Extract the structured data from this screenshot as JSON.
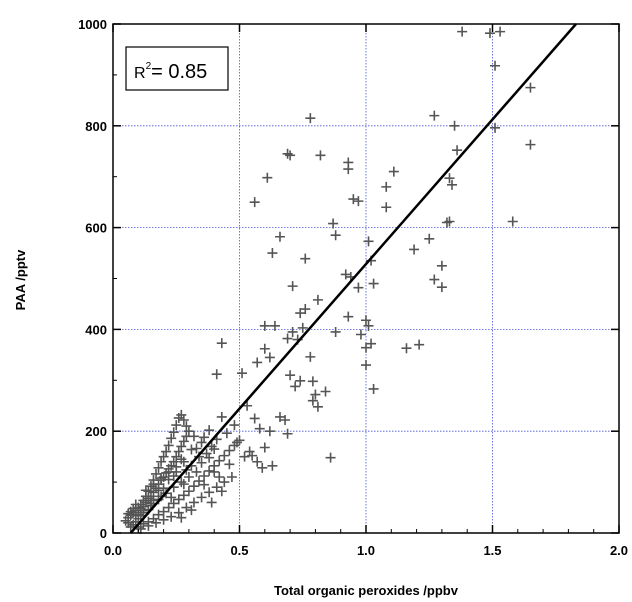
{
  "chart_data": {
    "type": "scatter",
    "xlabel": "Total organic peroxides /ppbv",
    "ylabel": "PAA /pptv",
    "xlim": [
      0,
      2.0
    ],
    "ylim": [
      0,
      1000
    ],
    "x_ticks": [
      "0.0",
      "0.5",
      "1.0",
      "1.5",
      "2.0"
    ],
    "y_ticks": [
      "0",
      "200",
      "400",
      "600",
      "800",
      "1000"
    ],
    "grid": true,
    "annotation": {
      "prefix": "R",
      "superscript": "2",
      "text": "= 0.85"
    },
    "colors": {
      "points": "#555555",
      "fit": "#000000",
      "grid": "#4a55d9"
    },
    "fit_line": {
      "x": [
        0.07,
        1.83
      ],
      "y": [
        0,
        1000
      ]
    },
    "points": [
      [
        1.38,
        985
      ],
      [
        1.49,
        982
      ],
      [
        1.53,
        985
      ],
      [
        1.51,
        918
      ],
      [
        1.65,
        875
      ],
      [
        1.51,
        796
      ],
      [
        1.65,
        763
      ],
      [
        1.36,
        752
      ],
      [
        1.35,
        800
      ],
      [
        1.27,
        820
      ],
      [
        1.11,
        710
      ],
      [
        1.33,
        697
      ],
      [
        1.34,
        684
      ],
      [
        1.08,
        680
      ],
      [
        1.33,
        612
      ],
      [
        1.32,
        610
      ],
      [
        1.08,
        640
      ],
      [
        1.58,
        612
      ],
      [
        0.78,
        815
      ],
      [
        0.69,
        745
      ],
      [
        0.7,
        742
      ],
      [
        0.82,
        742
      ],
      [
        0.93,
        728
      ],
      [
        0.93,
        715
      ],
      [
        0.61,
        698
      ],
      [
        0.56,
        650
      ],
      [
        0.95,
        656
      ],
      [
        0.97,
        652
      ],
      [
        1.01,
        573
      ],
      [
        1.19,
        557
      ],
      [
        1.25,
        578
      ],
      [
        1.27,
        498
      ],
      [
        1.3,
        483
      ],
      [
        1.3,
        525
      ],
      [
        0.87,
        608
      ],
      [
        0.88,
        585
      ],
      [
        0.92,
        508
      ],
      [
        0.94,
        503
      ],
      [
        0.97,
        482
      ],
      [
        0.66,
        582
      ],
      [
        0.63,
        550
      ],
      [
        0.76,
        539
      ],
      [
        0.71,
        485
      ],
      [
        0.76,
        440
      ],
      [
        0.74,
        432
      ],
      [
        0.75,
        403
      ],
      [
        0.71,
        395
      ],
      [
        0.64,
        407
      ],
      [
        0.6,
        407
      ],
      [
        0.6,
        362
      ],
      [
        0.62,
        345
      ],
      [
        0.57,
        335
      ],
      [
        0.51,
        314
      ],
      [
        0.69,
        382
      ],
      [
        0.73,
        380
      ],
      [
        0.78,
        346
      ],
      [
        1.0,
        418
      ],
      [
        1.01,
        407
      ],
      [
        1.02,
        372
      ],
      [
        1.0,
        364
      ],
      [
        1.0,
        330
      ],
      [
        1.03,
        283
      ],
      [
        0.98,
        390
      ],
      [
        1.03,
        490
      ],
      [
        1.02,
        535
      ],
      [
        0.93,
        425
      ],
      [
        0.88,
        395
      ],
      [
        0.81,
        458
      ],
      [
        1.16,
        363
      ],
      [
        1.21,
        370
      ],
      [
        0.43,
        373
      ],
      [
        0.41,
        312
      ],
      [
        0.7,
        310
      ],
      [
        0.74,
        299
      ],
      [
        0.72,
        288
      ],
      [
        0.79,
        298
      ],
      [
        0.8,
        272
      ],
      [
        0.84,
        278
      ],
      [
        0.79,
        260
      ],
      [
        0.81,
        248
      ],
      [
        0.86,
        148
      ],
      [
        0.53,
        250
      ],
      [
        0.56,
        225
      ],
      [
        0.58,
        205
      ],
      [
        0.66,
        228
      ],
      [
        0.68,
        222
      ],
      [
        0.69,
        195
      ],
      [
        0.62,
        200
      ],
      [
        0.6,
        168
      ],
      [
        0.55,
        152
      ],
      [
        0.57,
        140
      ],
      [
        0.59,
        128
      ],
      [
        0.63,
        132
      ],
      [
        0.54,
        160
      ],
      [
        0.52,
        150
      ],
      [
        0.49,
        178
      ],
      [
        0.46,
        135
      ],
      [
        0.43,
        82
      ],
      [
        0.38,
        148
      ],
      [
        0.4,
        120
      ],
      [
        0.48,
        212
      ],
      [
        0.43,
        228
      ],
      [
        0.38,
        202
      ],
      [
        0.36,
        188
      ],
      [
        0.33,
        166
      ],
      [
        0.31,
        132
      ],
      [
        0.27,
        145
      ],
      [
        0.28,
        96
      ],
      [
        0.25,
        120
      ],
      [
        0.22,
        105
      ],
      [
        0.2,
        88
      ],
      [
        0.19,
        72
      ],
      [
        0.18,
        84
      ],
      [
        0.16,
        64
      ],
      [
        0.15,
        58
      ],
      [
        0.14,
        46
      ],
      [
        0.12,
        40
      ],
      [
        0.11,
        34
      ],
      [
        0.1,
        28
      ],
      [
        0.09,
        22
      ],
      [
        0.08,
        16
      ],
      [
        0.07,
        12
      ],
      [
        0.06,
        20
      ],
      [
        0.05,
        24
      ],
      [
        0.06,
        30
      ],
      [
        0.07,
        35
      ],
      [
        0.08,
        40
      ],
      [
        0.09,
        44
      ],
      [
        0.1,
        36
      ],
      [
        0.11,
        48
      ],
      [
        0.12,
        52
      ],
      [
        0.13,
        60
      ],
      [
        0.14,
        68
      ],
      [
        0.15,
        72
      ],
      [
        0.16,
        80
      ],
      [
        0.17,
        88
      ],
      [
        0.18,
        96
      ],
      [
        0.19,
        104
      ],
      [
        0.2,
        110
      ],
      [
        0.21,
        118
      ],
      [
        0.22,
        126
      ],
      [
        0.23,
        132
      ],
      [
        0.24,
        140
      ],
      [
        0.25,
        150
      ],
      [
        0.26,
        160
      ],
      [
        0.27,
        170
      ],
      [
        0.28,
        180
      ],
      [
        0.29,
        190
      ],
      [
        0.3,
        200
      ],
      [
        0.29,
        210
      ],
      [
        0.28,
        222
      ],
      [
        0.27,
        232
      ],
      [
        0.26,
        226
      ],
      [
        0.25,
        212
      ],
      [
        0.24,
        198
      ],
      [
        0.23,
        186
      ],
      [
        0.22,
        172
      ],
      [
        0.21,
        160
      ],
      [
        0.2,
        150
      ],
      [
        0.19,
        140
      ],
      [
        0.18,
        128
      ],
      [
        0.17,
        116
      ],
      [
        0.16,
        104
      ],
      [
        0.15,
        92
      ],
      [
        0.14,
        82
      ],
      [
        0.13,
        72
      ],
      [
        0.12,
        64
      ],
      [
        0.11,
        56
      ],
      [
        0.1,
        50
      ],
      [
        0.09,
        56
      ],
      [
        0.08,
        48
      ],
      [
        0.07,
        42
      ],
      [
        0.06,
        38
      ],
      [
        0.1,
        12
      ],
      [
        0.12,
        18
      ],
      [
        0.14,
        22
      ],
      [
        0.16,
        28
      ],
      [
        0.18,
        36
      ],
      [
        0.2,
        42
      ],
      [
        0.22,
        50
      ],
      [
        0.24,
        58
      ],
      [
        0.26,
        66
      ],
      [
        0.28,
        74
      ],
      [
        0.3,
        82
      ],
      [
        0.32,
        92
      ],
      [
        0.34,
        102
      ],
      [
        0.36,
        112
      ],
      [
        0.38,
        122
      ],
      [
        0.4,
        132
      ],
      [
        0.42,
        142
      ],
      [
        0.44,
        152
      ],
      [
        0.46,
        162
      ],
      [
        0.48,
        172
      ],
      [
        0.5,
        182
      ],
      [
        0.33,
        120
      ],
      [
        0.35,
        138
      ],
      [
        0.37,
        156
      ],
      [
        0.39,
        170
      ],
      [
        0.41,
        184
      ],
      [
        0.45,
        196
      ],
      [
        0.47,
        110
      ],
      [
        0.44,
        100
      ],
      [
        0.41,
        90
      ],
      [
        0.38,
        80
      ],
      [
        0.35,
        70
      ],
      [
        0.32,
        60
      ],
      [
        0.29,
        50
      ],
      [
        0.26,
        40
      ],
      [
        0.23,
        32
      ],
      [
        0.2,
        26
      ],
      [
        0.17,
        20
      ],
      [
        0.14,
        14
      ],
      [
        0.11,
        8
      ],
      [
        0.3,
        110
      ],
      [
        0.27,
        100
      ],
      [
        0.24,
        90
      ],
      [
        0.21,
        78
      ],
      [
        0.18,
        66
      ],
      [
        0.15,
        54
      ],
      [
        0.12,
        44
      ],
      [
        0.09,
        34
      ],
      [
        0.34,
        150
      ],
      [
        0.31,
        164
      ],
      [
        0.28,
        140
      ],
      [
        0.25,
        130
      ],
      [
        0.22,
        120
      ],
      [
        0.19,
        108
      ],
      [
        0.16,
        96
      ],
      [
        0.13,
        84
      ],
      [
        0.35,
        178
      ],
      [
        0.32,
        190
      ],
      [
        0.4,
        165
      ],
      [
        0.42,
        110
      ],
      [
        0.36,
        95
      ],
      [
        0.39,
        60
      ],
      [
        0.31,
        45
      ],
      [
        0.27,
        30
      ],
      [
        0.23,
        70
      ],
      [
        0.24,
        112
      ],
      [
        0.29,
        124
      ]
    ]
  }
}
